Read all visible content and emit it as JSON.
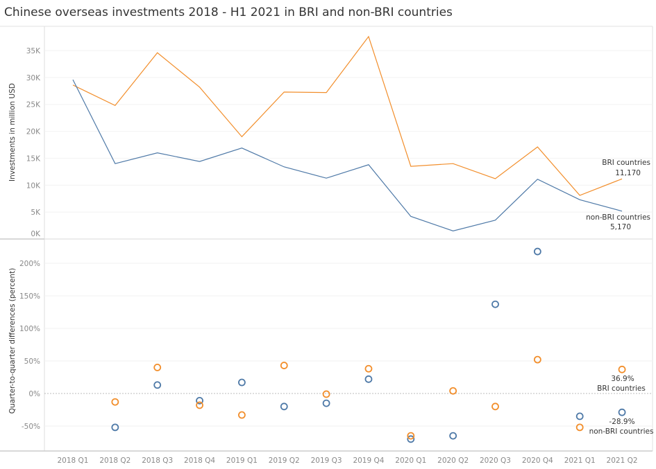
{
  "title": "Chinese overseas investments 2018 - H1 2021 in BRI and non-BRI countries",
  "chart_data": [
    {
      "type": "line",
      "ylabel": "Investments in million USD",
      "ylim": [
        0,
        37000
      ],
      "yticks": [
        "0K",
        "5K",
        "10K",
        "15K",
        "20K",
        "25K",
        "30K",
        "35K"
      ],
      "ytick_values": [
        0,
        5000,
        10000,
        15000,
        20000,
        25000,
        30000,
        35000
      ],
      "grid": true,
      "categories": [
        "2018 Q1",
        "2018 Q2",
        "2018 Q3",
        "2018 Q4",
        "2019 Q1",
        "2019 Q2",
        "2019 Q3",
        "2019 Q4",
        "2020 Q1",
        "2020 Q2",
        "2020 Q3",
        "2020 Q4",
        "2021 Q1",
        "2021 Q2"
      ],
      "series": [
        {
          "name": "BRI countries",
          "color": "#f28e2b",
          "end_label": "11,170",
          "values": [
            28600,
            24800,
            34600,
            28200,
            19000,
            27300,
            27200,
            37600,
            13500,
            14000,
            11200,
            17100,
            8100,
            11170
          ]
        },
        {
          "name": "non-BRI countries",
          "color": "#4e79a7",
          "end_label": "5,170",
          "values": [
            29600,
            14000,
            16000,
            14400,
            16900,
            13400,
            11300,
            13800,
            4200,
            1500,
            3500,
            11100,
            7300,
            5170
          ]
        }
      ]
    },
    {
      "type": "scatter",
      "ylabel": "Quarter-to-quarter differences (percent)",
      "ylim": [
        -88,
        232
      ],
      "yticks": [
        "-50%",
        "0%",
        "50%",
        "100%",
        "150%",
        "200%"
      ],
      "ytick_values": [
        -50,
        0,
        50,
        100,
        150,
        200
      ],
      "grid": true,
      "categories": [
        "2018 Q1",
        "2018 Q2",
        "2018 Q3",
        "2018 Q4",
        "2019 Q1",
        "2019 Q2",
        "2019 Q3",
        "2019 Q4",
        "2020 Q1",
        "2020 Q2",
        "2020 Q3",
        "2020 Q4",
        "2021 Q1",
        "2021 Q2"
      ],
      "series": [
        {
          "name": "BRI countries",
          "color": "#f28e2b",
          "end_label": "36.9%",
          "values": [
            null,
            -13,
            40,
            -18,
            -33,
            43,
            -1,
            38,
            -65,
            4,
            -20,
            52,
            -52,
            36.9
          ]
        },
        {
          "name": "non-BRI countries",
          "color": "#4e79a7",
          "end_label": "-28.9%",
          "values": [
            null,
            -52,
            13,
            -11,
            17,
            -20,
            -15,
            22,
            -70,
            -65,
            137,
            218,
            -35,
            -28.9
          ]
        }
      ]
    }
  ]
}
